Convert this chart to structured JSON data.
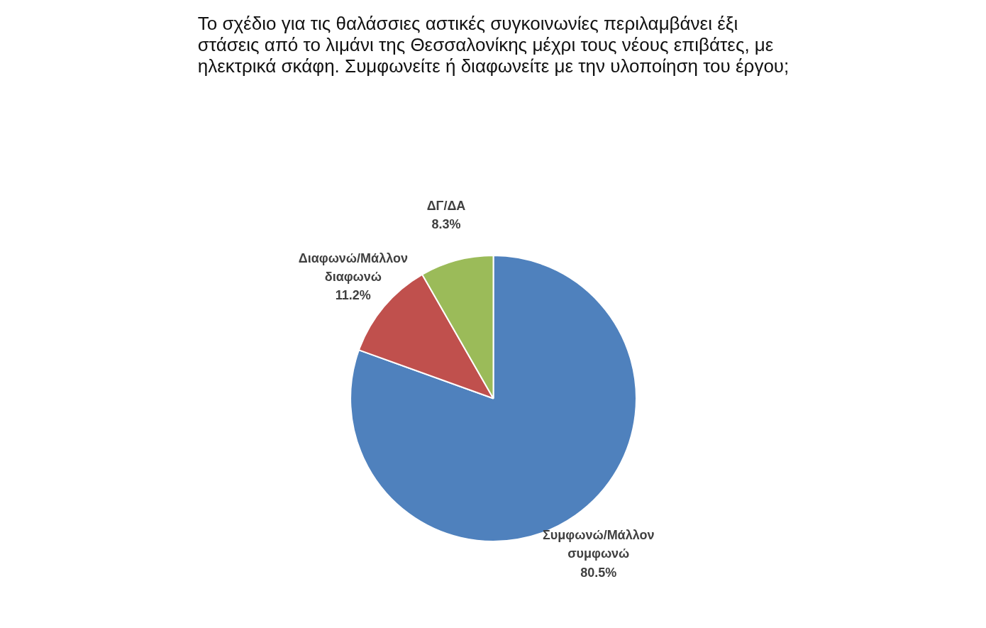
{
  "chart_data": {
    "type": "pie",
    "title": "Το σχέδιο για τις θαλάσσιες αστικές συγκοινωνίες περιλαμβάνει έξι\nστάσεις από το λιμάνι της Θεσσαλονίκης μέχρι τους νέους επιβάτες, με\nηλεκτρικά σκάφη. Συμφωνείτε ή διαφωνείτε με την υλοποίηση του έργου;",
    "categories": [
      "Συμφωνώ/Μάλλον συμφωνώ",
      "Διαφωνώ/Μάλλον διαφωνώ",
      "ΔΓ/ΔΑ"
    ],
    "values": [
      80.5,
      11.2,
      8.3
    ],
    "colors": [
      "#4f81bd",
      "#c0504d",
      "#9bbb59"
    ],
    "value_labels": [
      "80.5%",
      "11.2%",
      "8.3%"
    ],
    "legend": false
  }
}
